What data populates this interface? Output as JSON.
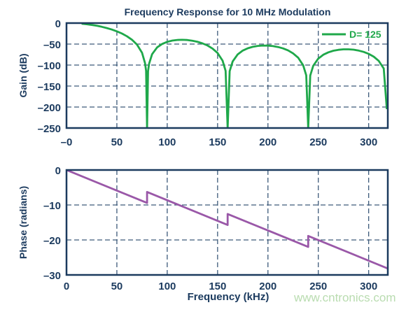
{
  "colors": {
    "axis": "#1b3a5e",
    "grid": "#3d5a7a",
    "gain": "#1fa84a",
    "phase": "#9a58a8",
    "watermark": "#b9dcb0"
  },
  "watermark": "www.cntronics.com",
  "chart_data": [
    {
      "type": "line",
      "title": "Frequency Response for 10 MHz Modulation",
      "xlabel": "",
      "ylabel": "Gain (dB)",
      "xlim": [
        0,
        319
      ],
      "ylim": [
        -250,
        0
      ],
      "grid": true,
      "legend_position": "top-right",
      "xticks": [
        0,
        50,
        100,
        150,
        200,
        250,
        300
      ],
      "xtick_labels": [
        "–0",
        "50",
        "100",
        "150",
        "200",
        "250",
        "300"
      ],
      "yticks": [
        0,
        -50,
        -100,
        -150,
        -200,
        -250
      ],
      "ytick_labels": [
        "0",
        "–50",
        "–100",
        "–150",
        "–200",
        "–250"
      ],
      "series": [
        {
          "name": "D= 125",
          "x": [
            15,
            20,
            25,
            30,
            35,
            40,
            45,
            50,
            55,
            60,
            65,
            70,
            75,
            78,
            79,
            80,
            80,
            81,
            82,
            85,
            90,
            95,
            100,
            105,
            110,
            115,
            120,
            125,
            130,
            135,
            140,
            145,
            150,
            155,
            158,
            160,
            160,
            162,
            165,
            170,
            175,
            180,
            185,
            190,
            195,
            200,
            205,
            210,
            215,
            220,
            225,
            230,
            235,
            238,
            240,
            240,
            242,
            245,
            250,
            255,
            260,
            265,
            270,
            275,
            280,
            285,
            290,
            295,
            300,
            305,
            310,
            315,
            318
          ],
          "y": [
            -1.5,
            -2.7,
            -4.4,
            -6.3,
            -8.8,
            -11.8,
            -15.3,
            -19.6,
            -24.9,
            -31.4,
            -39.7,
            -51.4,
            -70.7,
            -95.5,
            -113.8,
            -250,
            -250,
            -114.5,
            -96.8,
            -74.0,
            -57.9,
            -49.6,
            -44.7,
            -41.7,
            -40.2,
            -39.8,
            -40.4,
            -42.0,
            -44.5,
            -48.3,
            -53.4,
            -60.6,
            -71.2,
            -89.7,
            -113.9,
            -250,
            -250,
            -114.5,
            -91.3,
            -74.5,
            -65.5,
            -60.0,
            -56.5,
            -54.4,
            -53.5,
            -53.7,
            -54.8,
            -57.0,
            -60.4,
            -65.2,
            -72.1,
            -82.4,
            -100.5,
            -124.5,
            -250,
            -250,
            -125.0,
            -101.6,
            -84.5,
            -75.3,
            -69.6,
            -65.9,
            -63.6,
            -62.5,
            -62.5,
            -63.4,
            -65.5,
            -68.7,
            -73.3,
            -80.0,
            -90.1,
            -108.1,
            -205
          ]
        }
      ]
    },
    {
      "type": "line",
      "title": "",
      "xlabel": "Frequency (kHz)",
      "ylabel": "Phase (radians)",
      "xlim": [
        0,
        319
      ],
      "ylim": [
        -30,
        0
      ],
      "grid": true,
      "xticks": [
        0,
        50,
        100,
        150,
        200,
        250,
        300
      ],
      "xtick_labels": [
        "0",
        "50",
        "100",
        "150",
        "200",
        "250",
        "300"
      ],
      "yticks": [
        0,
        -10,
        -20,
        -30
      ],
      "ytick_labels": [
        "0",
        "–10",
        "–20",
        "–30"
      ],
      "series": [
        {
          "x": [
            0,
            80,
            80,
            160,
            160,
            240,
            240,
            320
          ],
          "y": [
            0,
            -9.42,
            -6.28,
            -15.71,
            -12.57,
            -21.99,
            -18.85,
            -28.27
          ]
        }
      ]
    }
  ]
}
